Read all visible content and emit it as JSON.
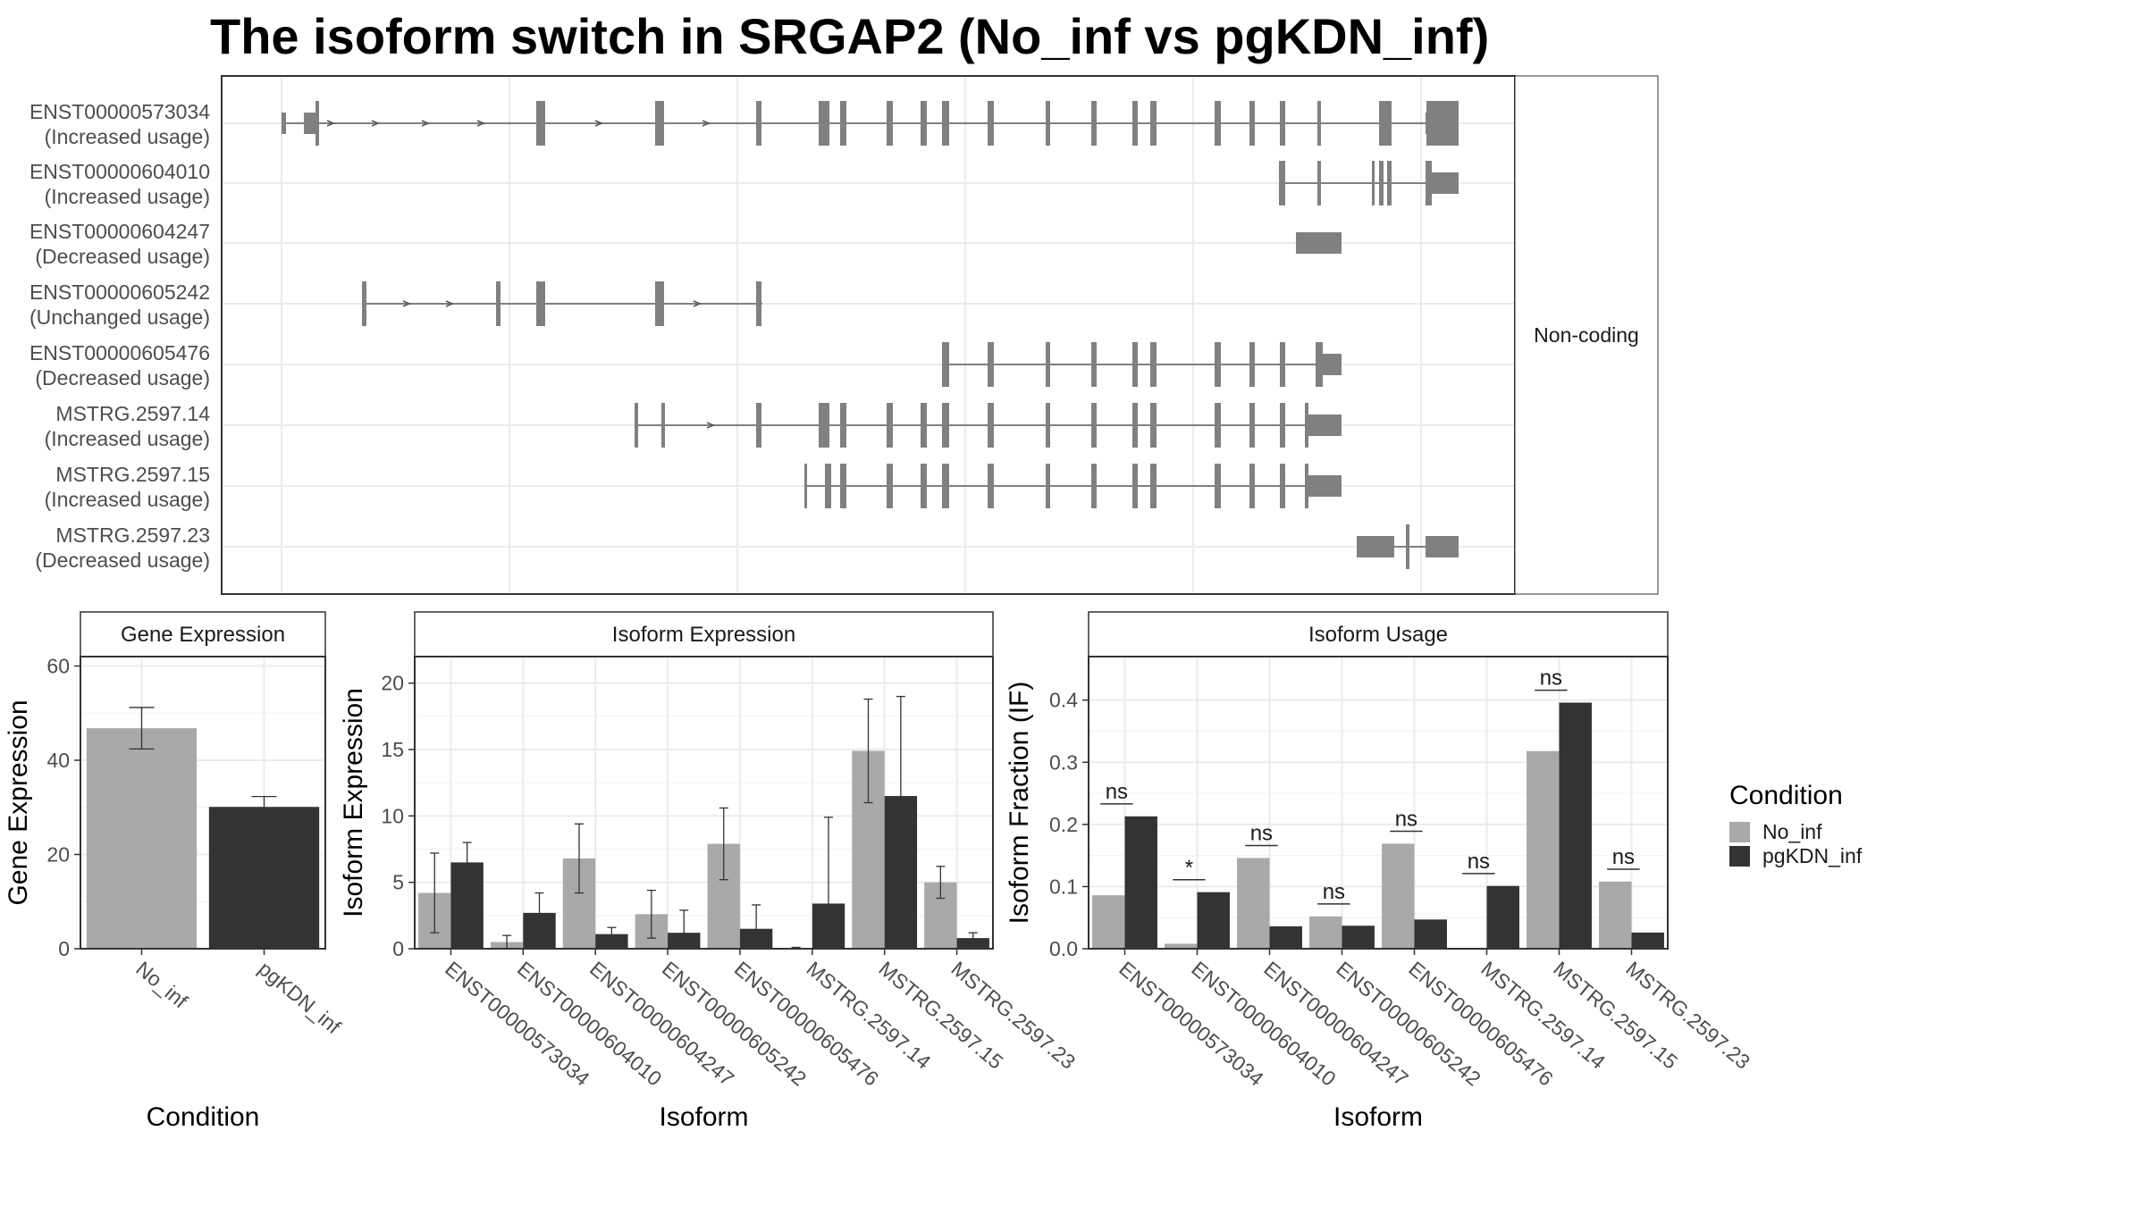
{
  "title": "The isoform switch in SRGAP2 (No_inf vs pgKDN_inf)",
  "colors": {
    "no_inf": "#a9a9a9",
    "pgkdn_inf": "#333333",
    "feature": "#808080",
    "grid": "#ebebeb",
    "panel_border": "#333333",
    "strip_fill": "#ffffff"
  },
  "transcript_panel": {
    "strip_label": "Non-coding",
    "transcripts": [
      {
        "id": "ENST00000573034",
        "usage": "(Increased usage)"
      },
      {
        "id": "ENST00000604010",
        "usage": "(Increased usage)"
      },
      {
        "id": "ENST00000604247",
        "usage": "(Decreased usage)"
      },
      {
        "id": "ENST00000605242",
        "usage": "(Unchanged usage)"
      },
      {
        "id": "ENST00000605476",
        "usage": "(Decreased usage)"
      },
      {
        "id": "MSTRG.2597.14",
        "usage": "(Increased usage)"
      },
      {
        "id": "MSTRG.2597.15",
        "usage": "(Increased usage)"
      },
      {
        "id": "MSTRG.2597.23",
        "usage": "(Decreased usage)"
      }
    ]
  },
  "legend": {
    "title": "Condition",
    "items": [
      "No_inf",
      "pgKDN_inf"
    ]
  },
  "chart_data": [
    {
      "type": "bar",
      "strip": "Gene Expression",
      "xlabel": "Condition",
      "ylabel": "Gene Expression",
      "ylim": [
        0,
        62
      ],
      "yticks": [
        0,
        20,
        40,
        60
      ],
      "categories": [
        "No_inf",
        "pgKDN_inf"
      ],
      "values": [
        46.8,
        30.1
      ],
      "errors": [
        4.4,
        2.2
      ]
    },
    {
      "type": "bar",
      "strip": "Isoform Expression",
      "xlabel": "Isoform",
      "ylabel": "Isoform Expression",
      "ylim": [
        0,
        22
      ],
      "yticks": [
        0,
        5,
        10,
        15,
        20
      ],
      "categories": [
        "ENST00000573034",
        "ENST00000604010",
        "ENST00000604247",
        "ENST00000605242",
        "ENST00000605476",
        "MSTRG.2597.14",
        "MSTRG.2597.15",
        "MSTRG.2597.23"
      ],
      "series": [
        {
          "name": "No_inf",
          "values": [
            4.2,
            0.5,
            6.8,
            2.6,
            7.9,
            0.05,
            14.9,
            5.0
          ],
          "errors": [
            3.0,
            0.5,
            2.6,
            1.8,
            2.7,
            0.05,
            3.9,
            1.2
          ]
        },
        {
          "name": "pgKDN_inf",
          "values": [
            6.5,
            2.7,
            1.1,
            1.2,
            1.5,
            3.4,
            11.5,
            0.8
          ],
          "errors": [
            1.5,
            1.5,
            0.5,
            1.7,
            1.8,
            6.5,
            7.5,
            0.4
          ]
        }
      ]
    },
    {
      "type": "bar",
      "strip": "Isoform Usage",
      "xlabel": "Isoform",
      "ylabel": "Isoform Fraction (IF)",
      "ylim": [
        0,
        0.47
      ],
      "yticks": [
        0.0,
        0.1,
        0.2,
        0.3,
        0.4
      ],
      "categories": [
        "ENST00000573034",
        "ENST00000604010",
        "ENST00000604247",
        "ENST00000605242",
        "ENST00000605476",
        "MSTRG.2597.14",
        "MSTRG.2597.15",
        "MSTRG.2597.23"
      ],
      "series": [
        {
          "name": "No_inf",
          "values": [
            0.086,
            0.008,
            0.146,
            0.052,
            0.169,
            0.0,
            0.318,
            0.108
          ]
        },
        {
          "name": "pgKDN_inf",
          "values": [
            0.213,
            0.091,
            0.036,
            0.037,
            0.047,
            0.101,
            0.396,
            0.026
          ]
        }
      ],
      "significance": [
        "ns",
        "*",
        "ns",
        "ns",
        "ns",
        "ns",
        "ns",
        "ns"
      ]
    }
  ]
}
